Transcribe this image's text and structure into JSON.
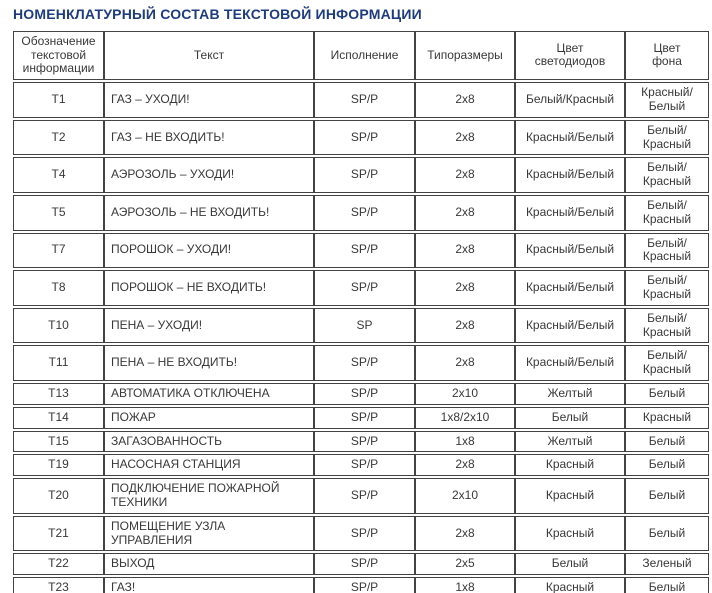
{
  "title": "НОМЕНКЛАТУРНЫЙ СОСТАВ ТЕКСТОВОЙ ИНФОРМАЦИИ",
  "colors": {
    "title_accent": "#1d3b7f",
    "table_text": "#383838",
    "table_border": "#434343",
    "background": "#ffffff"
  },
  "table": {
    "columns": [
      "Обозначение\nтекстовой\nинформации",
      "Текст",
      "Исполнение",
      "Типоразмеры",
      "Цвет светодиодов",
      "Цвет\nфона"
    ],
    "rows": [
      [
        "Т1",
        "ГАЗ – УХОДИ!",
        "SP/P",
        "2х8",
        "Белый/Красный",
        "Красный/\nБелый"
      ],
      [
        "Т2",
        "ГАЗ – НЕ ВХОДИТЬ!",
        "SP/P",
        "2х8",
        "Красный/Белый",
        "Белый/\nКрасный"
      ],
      [
        "Т4",
        "АЭРОЗОЛЬ – УХОДИ!",
        "SP/P",
        "2х8",
        "Красный/Белый",
        "Белый/\nКрасный"
      ],
      [
        "Т5",
        "АЭРОЗОЛЬ – НЕ ВХОДИТЬ!",
        "SP/P",
        "2х8",
        "Красный/Белый",
        "Белый/\nКрасный"
      ],
      [
        "Т7",
        "ПОРОШОК – УХОДИ!",
        "SP/P",
        "2х8",
        "Красный/Белый",
        "Белый/\nКрасный"
      ],
      [
        "Т8",
        "ПОРОШОК – НЕ ВХОДИТЬ!",
        "SP/P",
        "2х8",
        "Красный/Белый",
        "Белый/\nКрасный"
      ],
      [
        "Т10",
        "ПЕНА – УХОДИ!",
        "SP",
        "2х8",
        "Красный/Белый",
        "Белый/\nКрасный"
      ],
      [
        "Т11",
        "ПЕНА – НЕ ВХОДИТЬ!",
        "SP/P",
        "2х8",
        "Красный/Белый",
        "Белый/\nКрасный"
      ],
      [
        "Т13",
        "АВТОМАТИКА ОТКЛЮЧЕНА",
        "SP/P",
        "2х10",
        "Желтый",
        "Белый"
      ],
      [
        "Т14",
        "ПОЖАР",
        "SP/P",
        "1х8/2х10",
        "Белый",
        "Красный"
      ],
      [
        "Т15",
        "ЗАГАЗОВАННОСТЬ",
        "SP/P",
        "1х8",
        "Желтый",
        "Белый"
      ],
      [
        "Т19",
        "НАСОСНАЯ СТАНЦИЯ",
        "SP/P",
        "2х8",
        "Красный",
        "Белый"
      ],
      [
        "Т20",
        "ПОДКЛЮЧЕНИЕ ПОЖАРНОЙ\nТЕХНИКИ",
        "SP/P",
        "2х10",
        "Красный",
        "Белый"
      ],
      [
        "Т21",
        "ПОМЕЩЕНИЕ УЗЛА УПРАВЛЕНИЯ",
        "SP/P",
        "2х8",
        "Красный",
        "Белый"
      ],
      [
        "Т22",
        "ВЫХОД",
        "SP/P",
        "2х5",
        "Белый",
        "Зеленый"
      ],
      [
        "Т23",
        "ГАЗ!",
        "SP/P",
        "1х8",
        "Красный",
        "Белый"
      ]
    ]
  }
}
